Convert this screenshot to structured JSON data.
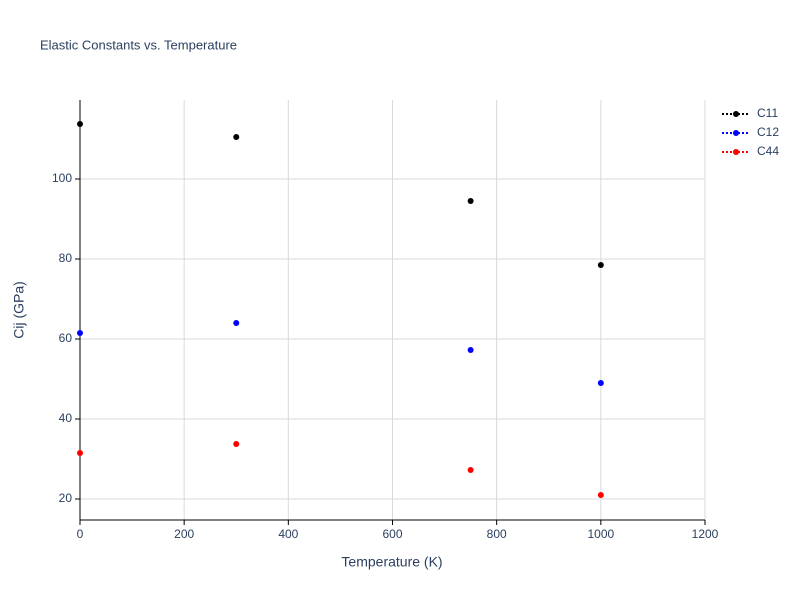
{
  "chart_data": {
    "type": "scatter",
    "title": "Elastic Constants vs. Temperature",
    "x_label": "Temperature (K)",
    "y_label": "Cij (GPa)",
    "x": [
      0,
      300,
      750,
      1000
    ],
    "series": [
      {
        "name": "C11",
        "color": "#000000",
        "values": [
          113.75,
          110.5,
          94.5,
          78.5
        ]
      },
      {
        "name": "C12",
        "color": "#0000ff",
        "values": [
          61.5,
          64,
          57.25,
          49
        ]
      },
      {
        "name": "C44",
        "color": "#ff0000",
        "values": [
          31.5,
          33.75,
          27.25,
          21
        ]
      }
    ],
    "xlim": [
      0,
      1200
    ],
    "xticks": [
      0,
      200,
      400,
      600,
      800,
      1000,
      1200
    ],
    "ylim": [
      14.75,
      119.75
    ],
    "yticks": [
      20,
      40,
      60,
      80,
      100
    ],
    "grid": true,
    "legend": "top-right"
  }
}
